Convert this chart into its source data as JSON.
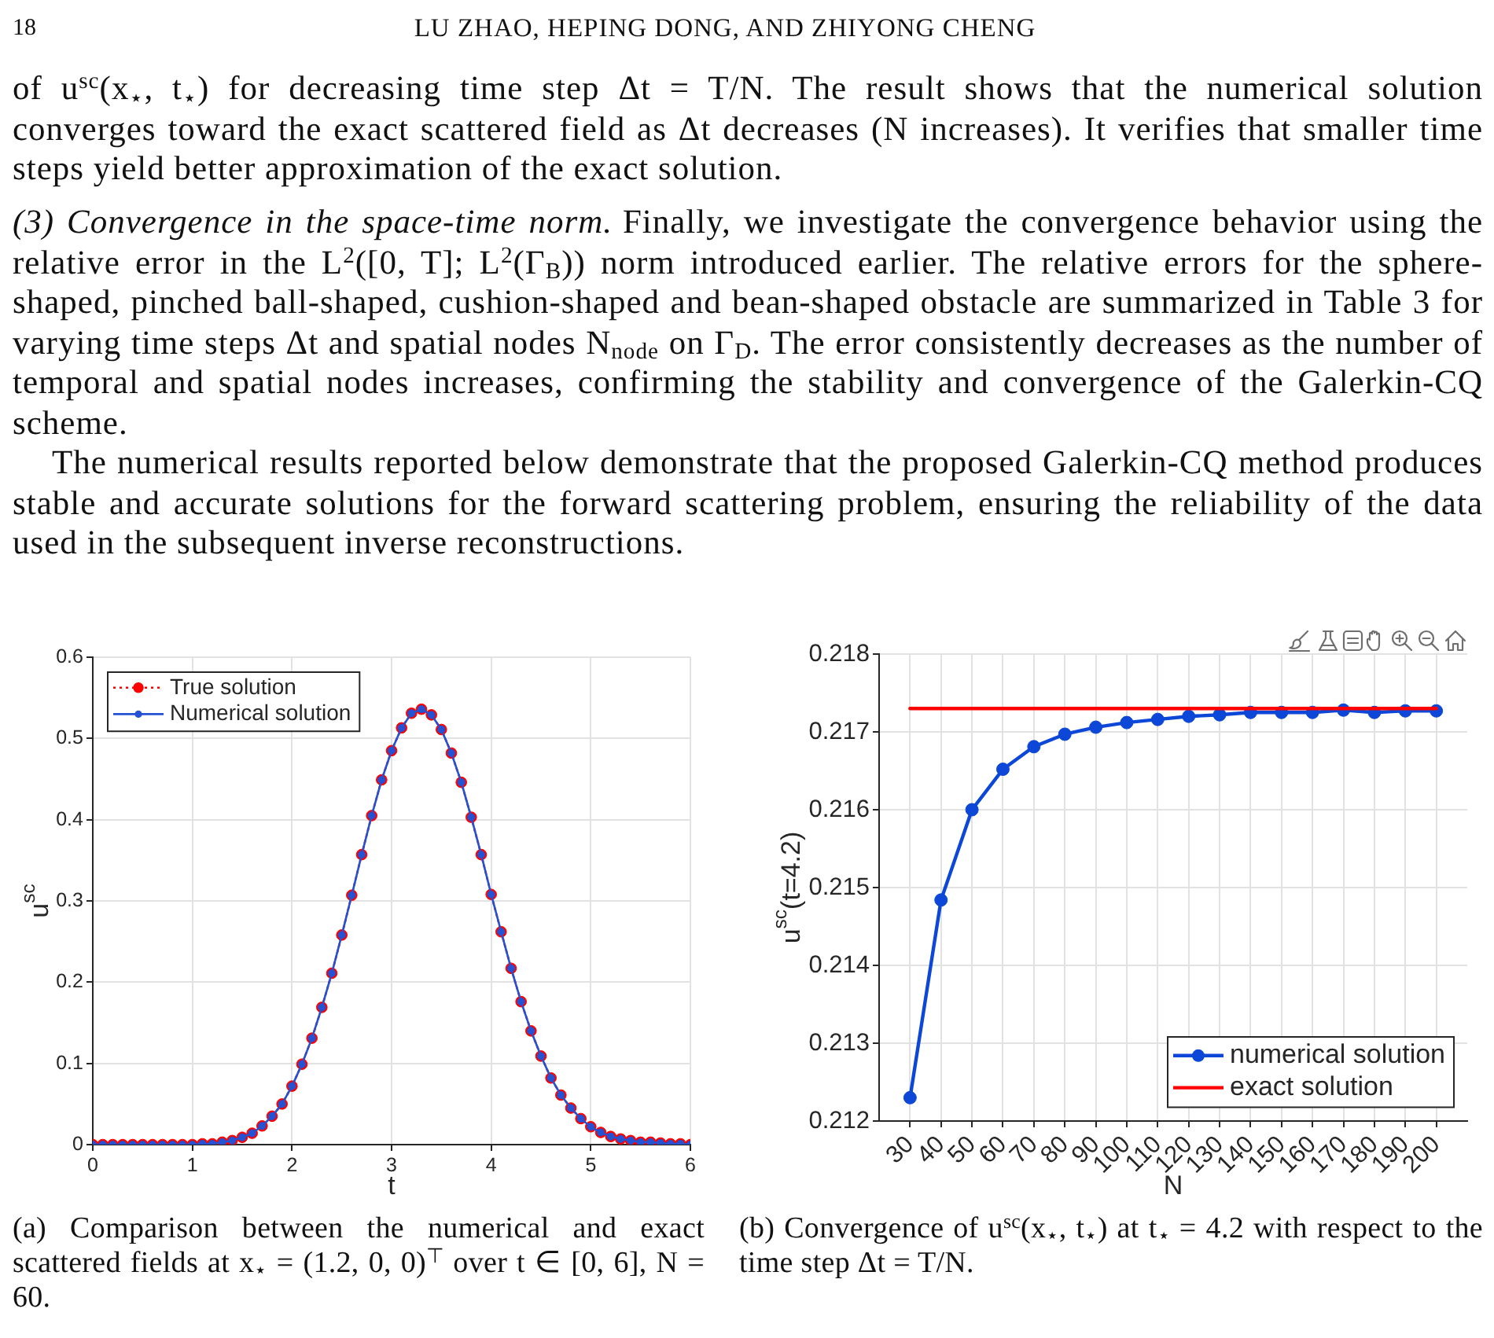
{
  "chart_data": [
    {
      "type": "other",
      "annotations": [
        "18",
        "LU ZHAO, HEPING DONG, AND ZHIYONG CHENG",
        "of u$^{sc}$(x$_{⋆}$, t$_{⋆}$) for decreasing time step Δt = T/N. The result shows that the numerical solution converges toward the exact scattered field as Δt decreases (N increases). It verifies that smaller time steps yield better approximation of the exact solution.",
        "(3) Convergence in the space-time norm.",
        "Finally, we investigate the convergence behavior using the relative error in the L$^{2}$([0, T]; L$^{2}$(Γ$_{B}$)) norm introduced earlier. The relative errors for the sphere-shaped, pinched ball-shaped, cushion-shaped and bean-shaped obstacle are summarized in Table 3 for varying time steps Δt and spatial nodes N$_{node}$ on Γ$_{D}$. The error consistently decreases as the number of temporal and spatial nodes increases, confirming the stability and convergence of the Galerkin-CQ scheme.",
        "The numerical results reported below demonstrate that the proposed Galerkin-CQ method produces stable and accurate solutions for the forward scattering problem, ensuring the reliability of the data used in the subsequent inverse reconstructions."
      ]
    },
    {
      "type": "line",
      "xlabel": "t",
      "ylabel": "u$^{sc}$",
      "x": [
        0,
        0.1,
        0.2,
        0.3,
        0.4,
        0.5,
        0.6,
        0.7,
        0.8,
        0.9,
        1,
        1.1,
        1.2,
        1.3,
        1.4,
        1.5,
        1.6,
        1.7,
        1.8,
        1.9,
        2,
        2.1,
        2.2,
        2.3,
        2.4,
        2.5,
        2.6,
        2.7,
        2.8,
        2.9,
        3,
        3.1,
        3.2,
        3.3,
        3.4,
        3.5,
        3.6,
        3.7,
        3.8,
        3.9,
        4,
        4.1,
        4.2,
        4.3,
        4.4,
        4.5,
        4.6,
        4.7,
        4.8,
        4.9,
        5,
        5.1,
        5.2,
        5.3,
        5.4,
        5.5,
        5.6,
        5.7,
        5.8,
        5.9,
        6
      ],
      "series": [
        {
          "name": "True solution",
          "color": "#ff0000",
          "marker": "circle",
          "line_style": "dotted",
          "values": [
            0,
            0,
            0,
            0,
            0,
            0,
            0,
            0,
            0,
            0,
            0,
            0.001,
            0.001,
            0.003,
            0.005,
            0.009,
            0.014,
            0.023,
            0.035,
            0.05,
            0.072,
            0.099,
            0.131,
            0.169,
            0.211,
            0.258,
            0.307,
            0.357,
            0.405,
            0.449,
            0.485,
            0.513,
            0.531,
            0.536,
            0.529,
            0.511,
            0.482,
            0.446,
            0.403,
            0.357,
            0.308,
            0.262,
            0.217,
            0.176,
            0.14,
            0.109,
            0.082,
            0.061,
            0.045,
            0.032,
            0.022,
            0.015,
            0.01,
            0.007,
            0.005,
            0.003,
            0.003,
            0.002,
            0.001,
            0.001,
            0
          ]
        },
        {
          "name": "Numerical solution",
          "color": "#2352d4",
          "marker": "circle",
          "values": [
            0,
            0,
            0,
            0,
            0,
            0,
            0,
            0,
            0,
            0,
            0,
            0.001,
            0.001,
            0.003,
            0.005,
            0.009,
            0.014,
            0.023,
            0.035,
            0.05,
            0.072,
            0.099,
            0.131,
            0.169,
            0.211,
            0.258,
            0.307,
            0.357,
            0.405,
            0.449,
            0.485,
            0.513,
            0.531,
            0.536,
            0.529,
            0.511,
            0.482,
            0.446,
            0.403,
            0.357,
            0.308,
            0.262,
            0.217,
            0.176,
            0.14,
            0.109,
            0.082,
            0.061,
            0.045,
            0.032,
            0.022,
            0.015,
            0.01,
            0.007,
            0.005,
            0.003,
            0.003,
            0.002,
            0.001,
            0.001,
            0
          ]
        }
      ],
      "xlim": [
        0,
        6
      ],
      "xticks": [
        0,
        1,
        2,
        3,
        4,
        5,
        6
      ],
      "ylim": [
        0,
        0.6
      ],
      "yticks": [
        0,
        0.1,
        0.2,
        0.3,
        0.4,
        0.5,
        0.6
      ],
      "grid": true,
      "legend": "top left",
      "annotations": [
        "(a) Comparison between the numerical and exact scattered fields at x$_{⋆}$ = (1.2, 0, 0)$^{⊤}$ over t ∈ [0, 6], N = 60."
      ]
    },
    {
      "type": "line",
      "xlabel": "N",
      "ylabel": "u$^{sc}$(t=4.2)",
      "x": [
        30,
        40,
        50,
        60,
        70,
        80,
        90,
        100,
        110,
        120,
        130,
        140,
        150,
        160,
        170,
        180,
        190,
        200
      ],
      "series": [
        {
          "name": "numerical solution",
          "color": "#0c47d8",
          "marker": "circle",
          "values": [
            0.2123,
            0.21484,
            0.216,
            0.21652,
            0.21681,
            0.21697,
            0.21706,
            0.21712,
            0.21716,
            0.2172,
            0.21722,
            0.21725,
            0.21725,
            0.21725,
            0.21728,
            0.21725,
            0.21727,
            0.21727
          ]
        },
        {
          "name": "exact solution",
          "color": "#ff0000",
          "x": [
            30,
            200
          ],
          "values": [
            0.2173,
            0.2173
          ]
        }
      ],
      "xlim": [
        20,
        210
      ],
      "xticks": [
        30,
        40,
        50,
        60,
        70,
        80,
        90,
        100,
        110,
        120,
        130,
        140,
        150,
        160,
        170,
        180,
        190,
        200
      ],
      "ylim": [
        0.212,
        0.218
      ],
      "yticks": [
        0.212,
        0.213,
        0.214,
        0.215,
        0.216,
        0.217,
        0.218
      ],
      "grid": true,
      "legend": "bottom right",
      "annotations": [
        "(b) Convergence of u$^{sc}$(x$_{⋆}$, t$_{⋆}$) at t$_{⋆}$ = 4.2 with respect to the time step Δt = T/N."
      ]
    }
  ]
}
